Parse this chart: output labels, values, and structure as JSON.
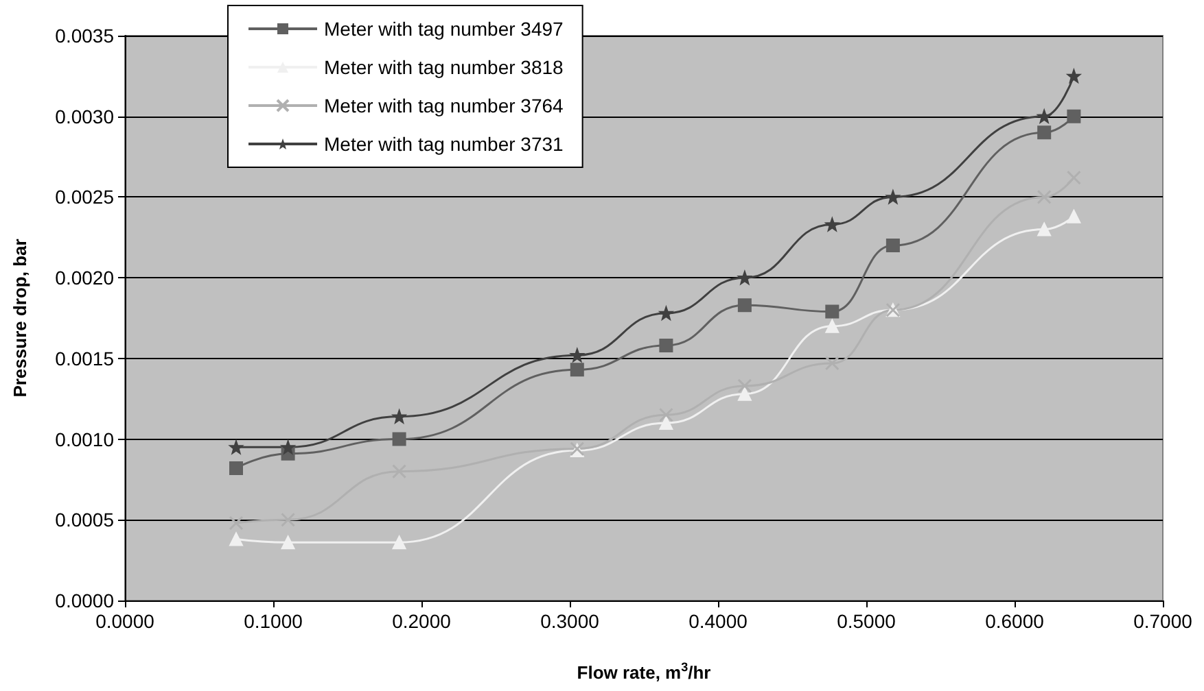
{
  "chart_data": {
    "type": "line",
    "xlabel": "Flow rate, m$^{3}$/hr",
    "ylabel": "Pressure drop, bar",
    "xlim": [
      0,
      0.7
    ],
    "xticks": [
      {
        "value": 0,
        "label": "0.0000"
      },
      {
        "value": 0.1,
        "label": "0.1000"
      },
      {
        "value": 0.2,
        "label": "0.2000"
      },
      {
        "value": 0.3,
        "label": "0.3000"
      },
      {
        "value": 0.4,
        "label": "0.4000"
      },
      {
        "value": 0.5,
        "label": "0.5000"
      },
      {
        "value": 0.6,
        "label": "0.6000"
      },
      {
        "value": 0.7,
        "label": "0.7000"
      }
    ],
    "ylim": [
      0,
      0.0035
    ],
    "yticks": [
      {
        "value": 0,
        "label": "0.0000"
      },
      {
        "value": 0.0005,
        "label": "0.0005"
      },
      {
        "value": 0.001,
        "label": "0.0010"
      },
      {
        "value": 0.0015,
        "label": "0.0015"
      },
      {
        "value": 0.002,
        "label": "0.0020"
      },
      {
        "value": 0.0025,
        "label": "0.0025"
      },
      {
        "value": 0.003,
        "label": "0.0030"
      },
      {
        "value": 0.0035,
        "label": "0.0035"
      }
    ],
    "grid": "y",
    "legend": "top left",
    "x": [
      0.075,
      0.11,
      0.185,
      0.305,
      0.365,
      0.418,
      0.477,
      0.518,
      0.62,
      0.64
    ],
    "series": [
      {
        "name": "Meter with tag number 3497",
        "color": "#606060",
        "marker": "square",
        "values": [
          0.00082,
          0.00091,
          0.001,
          0.00143,
          0.00158,
          0.00183,
          0.00179,
          0.0022,
          0.0029,
          0.003
        ]
      },
      {
        "name": "Meter with tag number 3818",
        "color": "#f0f0f0",
        "marker": "triangle",
        "values": [
          0.00038,
          0.00036,
          0.00036,
          0.00093,
          0.0011,
          0.00128,
          0.0017,
          0.0018,
          0.0023,
          0.00238
        ]
      },
      {
        "name": "Meter with tag number 3764",
        "color": "#b0b0b0",
        "marker": "cross",
        "values": [
          0.00048,
          0.0005,
          0.0008,
          0.00094,
          0.00115,
          0.00133,
          0.00147,
          0.0018,
          0.0025,
          0.00262
        ]
      },
      {
        "name": "Meter with tag number 3731",
        "color": "#404040",
        "marker": "star",
        "values": [
          0.00095,
          0.00095,
          0.00114,
          0.00152,
          0.00178,
          0.002,
          0.00233,
          0.0025,
          0.003,
          0.00325
        ]
      }
    ]
  }
}
